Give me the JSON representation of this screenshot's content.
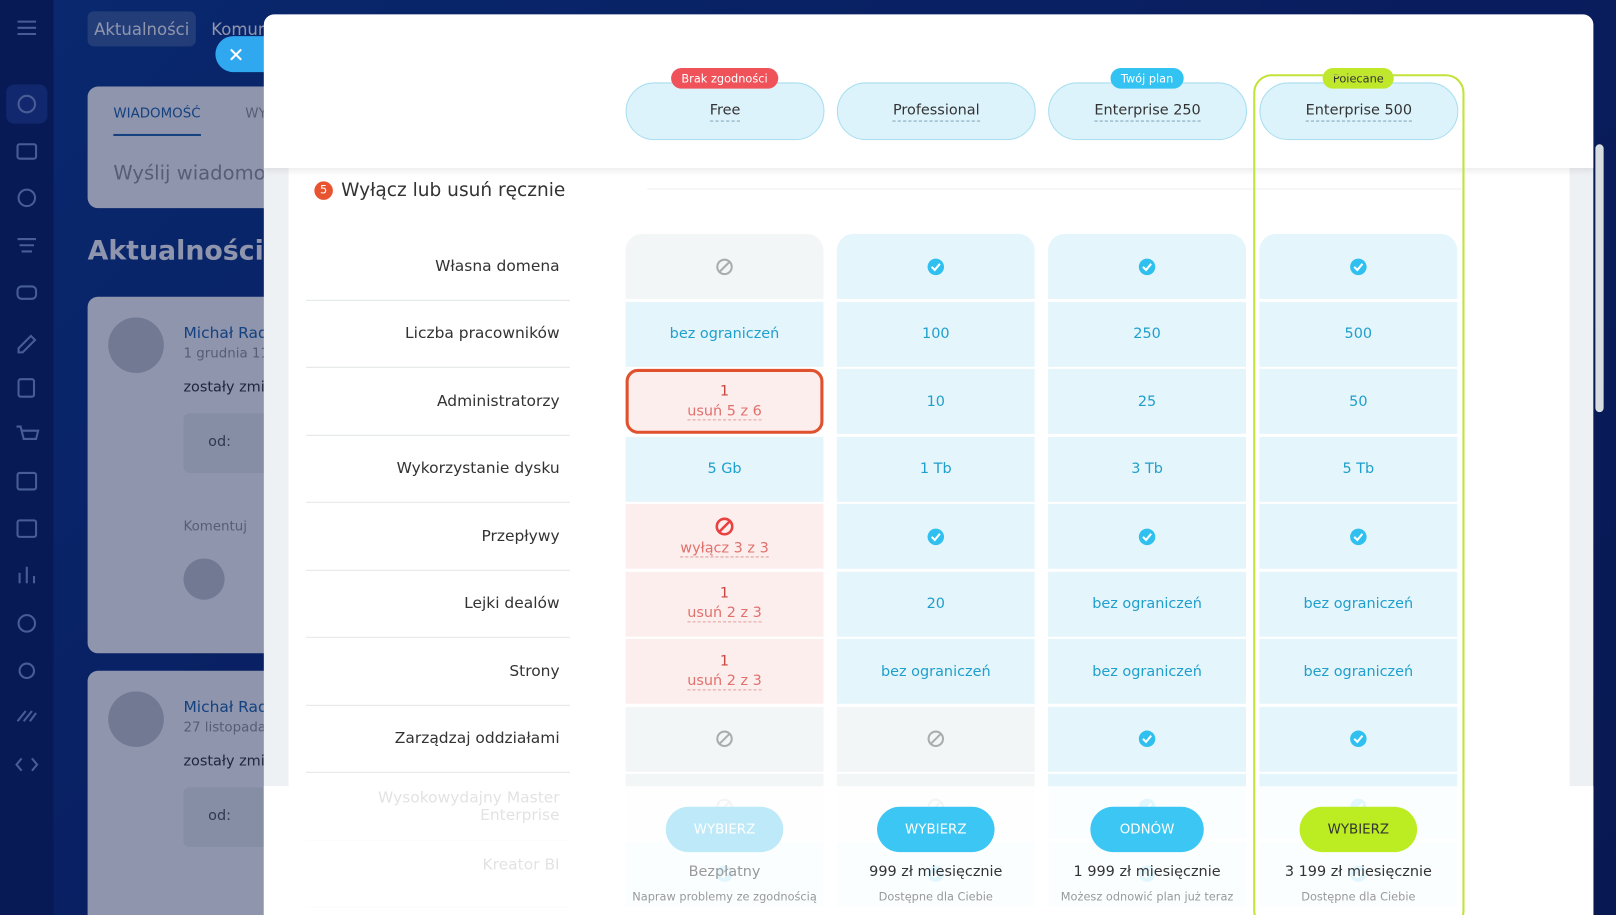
{
  "background": {
    "tabs": [
      "Aktualności",
      "Komun"
    ],
    "compose_tabs": [
      "WIADOMOŚĆ",
      "WY"
    ],
    "compose_placeholder": "Wyślij wiadomoś",
    "heading": "Aktualności",
    "posts": [
      {
        "author": "Michał Rad",
        "date": "1 grudnia 11",
        "text": "zostały zmie",
        "to": "od:",
        "comment": "Komentuj"
      },
      {
        "author": "Michał Rad",
        "date": "27 listopada",
        "text": "zostały zmie",
        "to": "od:"
      }
    ]
  },
  "plans": [
    {
      "name": "Free",
      "badge": "Brak zgodności",
      "badge_style": "warning"
    },
    {
      "name": "Professional"
    },
    {
      "name": "Enterprise 250",
      "badge": "Twój plan",
      "badge_style": "current"
    },
    {
      "name": "Enterprise 500",
      "badge": "Polecane",
      "badge_style": "recommended"
    }
  ],
  "section": {
    "number": "5",
    "title": "Wyłącz lub usuń ręcznie"
  },
  "rows": [
    {
      "label": "Własna domena",
      "cells": [
        {
          "icon": "none"
        },
        {
          "icon": "check"
        },
        {
          "icon": "check"
        },
        {
          "icon": "check"
        }
      ]
    },
    {
      "label": "Liczba pracowników",
      "cells": [
        {
          "text": "bez ograniczeń"
        },
        {
          "text": "100"
        },
        {
          "text": "250"
        },
        {
          "text": "500"
        }
      ]
    },
    {
      "label": "Administratorzy",
      "cells": [
        {
          "text": "1",
          "subtext": "usuń 5 z 6",
          "problem": true,
          "highlight": true
        },
        {
          "text": "10"
        },
        {
          "text": "25"
        },
        {
          "text": "50"
        }
      ]
    },
    {
      "label": "Wykorzystanie dysku",
      "cells": [
        {
          "text": "5 Gb"
        },
        {
          "text": "1 Tb"
        },
        {
          "text": "3 Tb"
        },
        {
          "text": "5 Tb"
        }
      ]
    },
    {
      "label": "Przepływy",
      "cells": [
        {
          "icon": "forbid",
          "subtext": "wyłącz 3 z 3",
          "problem": true
        },
        {
          "icon": "check"
        },
        {
          "icon": "check"
        },
        {
          "icon": "check"
        }
      ]
    },
    {
      "label": "Lejki dealów",
      "cells": [
        {
          "text": "1",
          "subtext": "usuń 2 z 3",
          "problem": true
        },
        {
          "text": "20"
        },
        {
          "text": "bez ograniczeń"
        },
        {
          "text": "bez ograniczeń"
        }
      ]
    },
    {
      "label": "Strony",
      "cells": [
        {
          "text": "1",
          "subtext": "usuń 2 z 3",
          "problem": true
        },
        {
          "text": "bez ograniczeń"
        },
        {
          "text": "bez ograniczeń"
        },
        {
          "text": "bez ograniczeń"
        }
      ]
    },
    {
      "label": "Zarządzaj oddziałami",
      "cells": [
        {
          "icon": "none"
        },
        {
          "icon": "none"
        },
        {
          "icon": "check"
        },
        {
          "icon": "check"
        }
      ]
    },
    {
      "label": "Wysokowydajny Master Enterprise",
      "cells": [
        {
          "icon": "none"
        },
        {
          "icon": "none"
        },
        {
          "icon": "check"
        },
        {
          "icon": "check"
        }
      ]
    },
    {
      "label": "Kreator BI",
      "cells": [
        {
          "icon": "check"
        },
        {
          "icon": "check"
        },
        {
          "icon": "check"
        },
        {
          "icon": "check"
        }
      ]
    }
  ],
  "footer": [
    {
      "button": "WYBIERZ",
      "button_style": "disabled",
      "price": "Bezpłatny",
      "note": "Napraw problemy ze zgodnością"
    },
    {
      "button": "WYBIERZ",
      "button_style": "primary",
      "price": "999 zł miesięcznie",
      "note": "Dostępne dla Ciebie"
    },
    {
      "button": "ODNÓW",
      "button_style": "primary",
      "price": "1 999 zł miesięcznie",
      "note": "Możesz odnowić plan już teraz"
    },
    {
      "button": "WYBIERZ",
      "button_style": "recommended",
      "price": "3 199 zł miesięcznie",
      "note": "Dostępne dla Ciebie"
    }
  ]
}
